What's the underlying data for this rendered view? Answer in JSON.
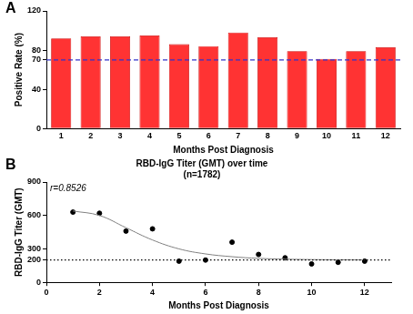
{
  "chart_data": [
    {
      "type": "bar",
      "panel": "A",
      "categories": [
        "1",
        "2",
        "3",
        "4",
        "5",
        "6",
        "7",
        "8",
        "9",
        "10",
        "11",
        "12"
      ],
      "values": [
        92,
        94,
        94,
        95,
        86,
        84,
        98,
        93,
        79,
        71,
        79,
        83
      ],
      "color": "#ff3333",
      "x_label": "Months Post Diagnosis",
      "y_label": "Positive Rate (%)",
      "ylim": [
        0,
        120
      ],
      "yticks": [
        0,
        40,
        70,
        80,
        120
      ],
      "reference_line": {
        "value": 70,
        "color": "#3333cc",
        "line_style": "dashed"
      },
      "grid": false
    },
    {
      "type": "scatter",
      "panel": "B",
      "title": "RBD-IgG Titer (GMT) over time",
      "subtitle": "(n=1782)",
      "annotations": [
        "r=0.8526"
      ],
      "x": [
        1,
        2,
        3,
        4,
        5,
        6,
        7,
        8,
        9,
        10,
        11,
        12
      ],
      "values": [
        630,
        620,
        460,
        480,
        190,
        200,
        360,
        250,
        220,
        165,
        180,
        190
      ],
      "color": "#000000",
      "marker": "circle",
      "fit": {
        "x": [
          1,
          2,
          3,
          4,
          5,
          6,
          7,
          8,
          9,
          10,
          11,
          12
        ],
        "values": [
          640,
          600,
          490,
          380,
          300,
          255,
          230,
          215,
          208,
          204,
          202,
          201
        ],
        "color": "#808080"
      },
      "x_label": "Months Post Diagnosis",
      "y_label": "RBD-IgG Titer (GMT)",
      "xlim": [
        0,
        13
      ],
      "xticks": [
        0,
        2,
        4,
        6,
        8,
        10,
        12
      ],
      "ylim": [
        0,
        900
      ],
      "yticks": [
        0,
        200,
        300,
        600,
        900
      ],
      "reference_line": {
        "value": 200,
        "color": "#000000",
        "line_style": "dotted"
      },
      "grid": false
    }
  ]
}
